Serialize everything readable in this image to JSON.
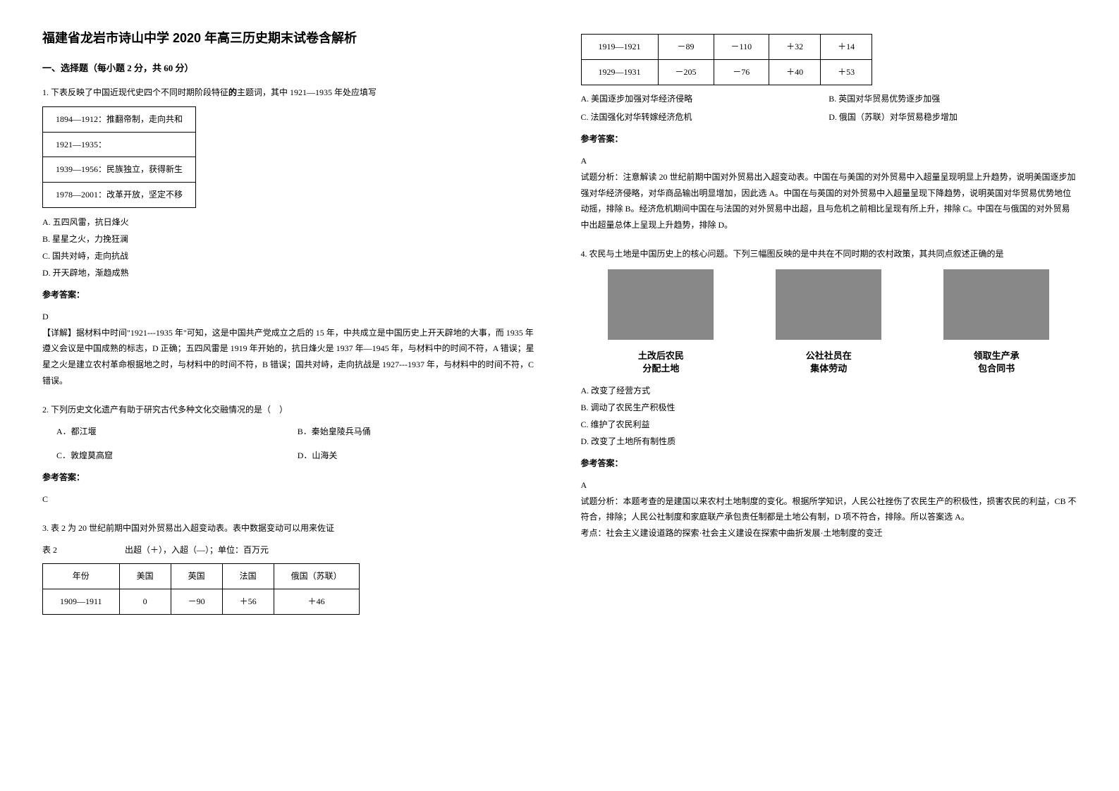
{
  "title": "福建省龙岩市诗山中学 2020 年高三历史期末试卷含解析",
  "section_title": "一、选择题（每小题 2 分，共 60 分）",
  "q1": {
    "text_part1": "1. 下表反映了中国近现代史四个不同时期阶段特征",
    "text_bold": "的",
    "text_part2": "主题词，其中 1921—1935 年处应填写",
    "table_rows": [
      "1894—1912：推翻帝制，走向共和",
      "1921—1935：",
      "1939—1956：民族独立，获得新生",
      "1978—2001：改革开放，坚定不移"
    ],
    "options": [
      "A. 五四风雷，抗日烽火",
      "B. 星星之火，力挽狂澜",
      "C. 国共对峙，走向抗战",
      "D. 开天辟地，渐趋成熟"
    ],
    "answer_label": "参考答案：",
    "answer": "D",
    "explanation": "【详解】据材料中时间\"1921---1935 年\"可知，这是中国共产党成立之后的 15 年，中共成立是中国历史上开天辟地的大事，而 1935 年遵义会议是中国成熟的标志，D 正确；五四风雷是 1919 年开始的，抗日烽火是 1937 年—1945 年，与材料中的时间不符，A 错误；星星之火是建立农村革命根据地之时，与材料中的时间不符，B 错误；国共对峙，走向抗战是 1927---1937 年，与材料中的时间不符，C 错误。"
  },
  "q2": {
    "text": "2. 下列历史文化遗产有助于研究古代多种文化交融情况的是（　）",
    "options": [
      {
        "a": "A．都江堰",
        "b": "B．秦始皇陵兵马俑"
      },
      {
        "a": "C．敦煌莫高窟",
        "b": "D．山海关"
      }
    ],
    "answer_label": "参考答案：",
    "answer": "C"
  },
  "q3": {
    "text": "3. 表 2 为 20 世纪前期中国对外贸易出入超变动表。表中数据变动可以用来佐证",
    "table_caption": "表 2　　　　　　　　出超（＋），入超（—）；单位：百万元",
    "headers": [
      "年份",
      "美国",
      "英国",
      "法国",
      "俄国（苏联）"
    ],
    "rows": [
      [
        "1909—1911",
        "0",
        "－90",
        "＋56",
        "＋46"
      ],
      [
        "1919—1921",
        "－89",
        "－110",
        "＋32",
        "＋14"
      ],
      [
        "1929—1931",
        "－205",
        "－76",
        "＋40",
        "＋53"
      ]
    ],
    "options": [
      {
        "a": "A. 美国逐步加强对华经济侵略",
        "b": "B. 英国对华贸易优势逐步加强"
      },
      {
        "a": "C. 法国强化对华转嫁经济危机",
        "b": "D. 俄国（苏联）对华贸易稳步增加"
      }
    ],
    "answer_label": "参考答案：",
    "answer": "A",
    "explanation": "试题分析：注意解读 20 世纪前期中国对外贸易出入超变动表。中国在与美国的对外贸易中入超量呈现明显上升趋势，说明美国逐步加强对华经济侵略，对华商品输出明显增加，因此选 A。中国在与英国的对外贸易中入超量呈现下降趋势，说明英国对华贸易优势地位动摇，排除 B。经济危机期间中国在与法国的对外贸易中出超，且与危机之前相比呈现有所上升，排除 C。中国在与俄国的对外贸易中出超量总体上呈现上升趋势，排除 D。"
  },
  "q4": {
    "text": "4. 农民与土地是中国历史上的核心问题。下列三幅图反映的是中共在不同时期的农村政策，其共同点叙述正确的是",
    "captions": [
      "土改后农民\n分配土地",
      "公社社员在\n集体劳动",
      "领取生产承\n包合同书"
    ],
    "options": [
      "A. 改变了经营方式",
      "B. 调动了农民生产积极性",
      "C. 维护了农民利益",
      "D. 改变了土地所有制性质"
    ],
    "answer_label": "参考答案：",
    "answer": "A",
    "explanation": "试题分析：本题考查的是建国以来农村土地制度的变化。根据所学知识，人民公社挫伤了农民生产的积极性，损害农民的利益，CB 不符合，排除；人民公社制度和家庭联产承包责任制都是土地公有制，D 项不符合，排除。所以答案选 A。",
    "kaodian": "考点：社会主义建设道路的探索·社会主义建设在探索中曲折发展·土地制度的变迁"
  }
}
